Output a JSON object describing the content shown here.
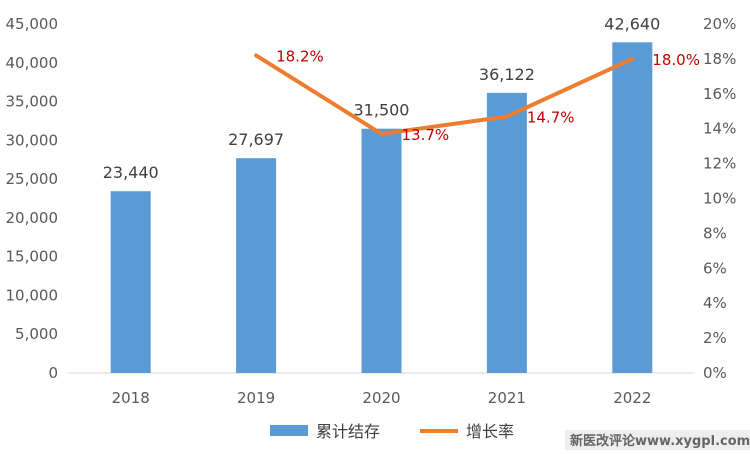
{
  "chart_data": {
    "type": "bar",
    "categories": [
      "2018",
      "2019",
      "2020",
      "2021",
      "2022"
    ],
    "series": [
      {
        "name": "累计结存",
        "type": "bar",
        "axis": "left",
        "values": [
          23440,
          27697,
          31500,
          36122,
          42640
        ],
        "labels": [
          "23,440",
          "27,697",
          "31,500",
          "36,122",
          "42,640"
        ],
        "color": "#5b9bd5"
      },
      {
        "name": "增长率",
        "type": "line",
        "axis": "right",
        "values": [
          null,
          18.2,
          13.7,
          14.7,
          18.0
        ],
        "labels": [
          "",
          "18.2%",
          "13.7%",
          "14.7%",
          "18.0%"
        ],
        "color": "#ed7d31",
        "label_color": "#c00000"
      }
    ],
    "y_left": {
      "ylim": [
        0,
        45000
      ],
      "ticks": [
        0,
        5000,
        10000,
        15000,
        20000,
        25000,
        30000,
        35000,
        40000,
        45000
      ],
      "tick_labels": [
        "0",
        "5,000",
        "10,000",
        "15,000",
        "20,000",
        "25,000",
        "30,000",
        "35,000",
        "40,000",
        "45,000"
      ]
    },
    "y_right": {
      "ylim": [
        0,
        20
      ],
      "ticks": [
        0,
        2,
        4,
        6,
        8,
        10,
        12,
        14,
        16,
        18,
        20
      ],
      "tick_labels": [
        "0%",
        "2%",
        "4%",
        "6%",
        "8%",
        "10%",
        "12%",
        "14%",
        "16%",
        "18%",
        "20%"
      ]
    },
    "grid": false,
    "legend_position": "bottom"
  },
  "legend": {
    "bar_label": "累计结存",
    "line_label": "增长率"
  },
  "watermark": {
    "text": "新医改评论www.xygpl.com"
  }
}
